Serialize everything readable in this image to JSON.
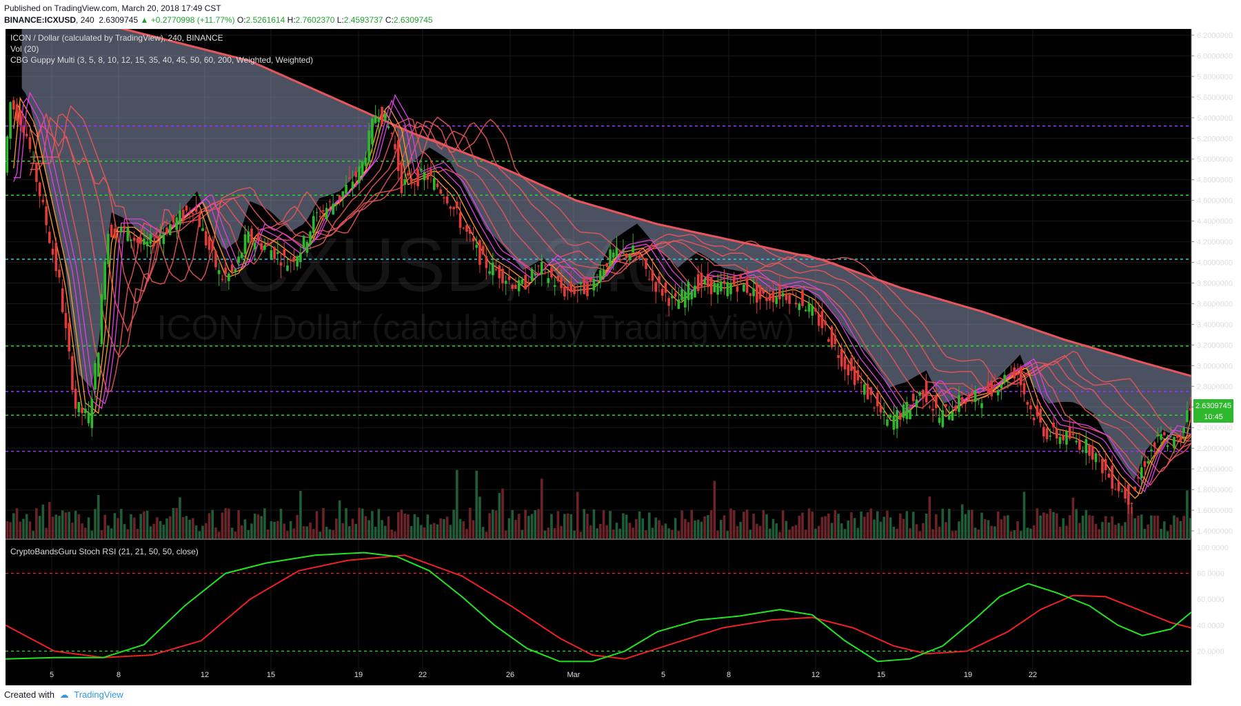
{
  "header": {
    "published": "Published on TradingView.com, March 20, 2018 17:49 CST",
    "symbol": "BINANCE:ICXUSD",
    "interval": "240",
    "last": "2.6309745",
    "change": "+0.2770998 (+11.77%)",
    "open_label": "O:",
    "open": "2.5261614",
    "high_label": "H:",
    "high": "2.7602370",
    "low_label": "L:",
    "low": "2.4593737",
    "close_label": "C:",
    "close": "2.6309745"
  },
  "legend": {
    "line1": "ICON / Dollar (calculated by TradingView), 240, BINANCE",
    "line2": "Vol (20)",
    "line3": "CBG Guppy Multi (3, 5, 8, 10, 12, 15, 35, 40, 45, 50, 60, 200, Weighted, Weighted)",
    "stoch": "CryptoBandsGuru Stoch RSI (21, 21, 50, 50, close)"
  },
  "watermark": {
    "line1": "ICXUSD, 240",
    "line2": "ICON / Dollar (calculated by TradingView)"
  },
  "price_tag": {
    "value": "2.6309745",
    "countdown": "10:45"
  },
  "footer": {
    "created": "Created with",
    "brand": "TradingView"
  },
  "colors": {
    "bg": "#000000",
    "up": "#2eb82e",
    "down": "#e03c3c",
    "cloud": "#8b93b0",
    "long_ema": "#e8555a",
    "long_ema_blue": "#2f53e6",
    "short_ema": "#ff9a2e",
    "short_ema_pink": "#e040e0",
    "k_line": "#22e522",
    "d_line": "#ee2222",
    "level_green": "#22dd22",
    "level_purple": "#9b30ff",
    "level_cyan": "#22d3e6"
  },
  "chart_data": {
    "type": "candlestick",
    "x_ticks": [
      "5",
      "8",
      "12",
      "15",
      "19",
      "22",
      "26",
      "Mar",
      "5",
      "8",
      "12",
      "15",
      "19",
      "22"
    ],
    "price_ticks": [
      "6.2000000",
      "6.0000000",
      "5.8000000",
      "5.6000000",
      "5.4000000",
      "5.2000000",
      "5.0000000",
      "4.8000000",
      "4.6000000",
      "4.4000000",
      "4.2000000",
      "4.0000000",
      "3.8000000",
      "3.6000000",
      "3.4000000",
      "3.2000000",
      "3.0000000",
      "2.8000000",
      "2.6000000",
      "2.4000000",
      "2.2000000",
      "2.0000000",
      "1.8000000",
      "1.6000000",
      "1.4000000"
    ],
    "price_range": [
      1.32,
      6.26
    ],
    "price_path": [
      [
        0,
        4.7
      ],
      [
        10,
        5.55
      ],
      [
        28,
        5.3
      ],
      [
        45,
        4.7
      ],
      [
        70,
        3.8
      ],
      [
        90,
        2.6
      ],
      [
        106,
        2.5
      ],
      [
        118,
        3.2
      ],
      [
        128,
        4.3
      ],
      [
        150,
        4.3
      ],
      [
        175,
        4.15
      ],
      [
        205,
        4.35
      ],
      [
        235,
        4.55
      ],
      [
        250,
        4.2
      ],
      [
        268,
        3.85
      ],
      [
        285,
        3.9
      ],
      [
        300,
        4.25
      ],
      [
        325,
        4.15
      ],
      [
        350,
        4.0
      ],
      [
        368,
        4.15
      ],
      [
        385,
        4.45
      ],
      [
        410,
        4.6
      ],
      [
        440,
        4.9
      ],
      [
        460,
        5.5
      ],
      [
        478,
        5.25
      ],
      [
        490,
        4.75
      ],
      [
        520,
        4.85
      ],
      [
        545,
        4.65
      ],
      [
        568,
        4.3
      ],
      [
        590,
        4.0
      ],
      [
        610,
        3.9
      ],
      [
        635,
        3.75
      ],
      [
        660,
        3.95
      ],
      [
        690,
        3.72
      ],
      [
        720,
        3.75
      ],
      [
        745,
        4.05
      ],
      [
        775,
        4.1
      ],
      [
        800,
        3.8
      ],
      [
        825,
        3.6
      ],
      [
        850,
        3.8
      ],
      [
        880,
        3.75
      ],
      [
        905,
        3.8
      ],
      [
        930,
        3.65
      ],
      [
        960,
        3.7
      ],
      [
        985,
        3.6
      ],
      [
        1010,
        3.35
      ],
      [
        1035,
        3.0
      ],
      [
        1060,
        2.75
      ],
      [
        1085,
        2.45
      ],
      [
        1105,
        2.55
      ],
      [
        1130,
        2.75
      ],
      [
        1150,
        2.5
      ],
      [
        1175,
        2.65
      ],
      [
        1200,
        2.7
      ],
      [
        1225,
        2.85
      ],
      [
        1245,
        2.95
      ],
      [
        1260,
        2.6
      ],
      [
        1280,
        2.35
      ],
      [
        1310,
        2.3
      ],
      [
        1335,
        2.2
      ],
      [
        1360,
        1.9
      ],
      [
        1385,
        1.7
      ],
      [
        1400,
        2.05
      ],
      [
        1420,
        2.3
      ],
      [
        1445,
        2.25
      ],
      [
        1455,
        2.63
      ]
    ],
    "horizontal_levels": [
      {
        "price": 5.32,
        "color": "purple"
      },
      {
        "price": 4.98,
        "color": "green"
      },
      {
        "price": 4.65,
        "color": "green"
      },
      {
        "price": 4.03,
        "color": "cyan"
      },
      {
        "price": 3.19,
        "color": "green"
      },
      {
        "price": 2.75,
        "color": "purple"
      },
      {
        "price": 2.52,
        "color": "green"
      },
      {
        "price": 2.17,
        "color": "purple"
      }
    ],
    "ema200_path": [
      [
        0,
        6.45
      ],
      [
        100,
        6.35
      ],
      [
        200,
        6.15
      ],
      [
        300,
        5.95
      ],
      [
        400,
        5.6
      ],
      [
        500,
        5.25
      ],
      [
        600,
        4.95
      ],
      [
        700,
        4.6
      ],
      [
        800,
        4.37
      ],
      [
        900,
        4.2
      ],
      [
        1000,
        4.03
      ],
      [
        1100,
        3.75
      ],
      [
        1200,
        3.52
      ],
      [
        1300,
        3.25
      ],
      [
        1400,
        3.02
      ],
      [
        1455,
        2.9
      ]
    ],
    "stoch_rsi": {
      "y_ticks": [
        "100.0000",
        "80.0000",
        "60.0000",
        "40.0000",
        "20.0000"
      ],
      "levels": [
        80,
        20
      ],
      "k": [
        [
          0,
          14
        ],
        [
          60,
          15
        ],
        [
          120,
          15
        ],
        [
          170,
          25
        ],
        [
          220,
          55
        ],
        [
          270,
          80
        ],
        [
          320,
          88
        ],
        [
          380,
          94
        ],
        [
          440,
          96
        ],
        [
          480,
          93
        ],
        [
          520,
          82
        ],
        [
          560,
          62
        ],
        [
          600,
          40
        ],
        [
          640,
          22
        ],
        [
          680,
          12
        ],
        [
          720,
          12
        ],
        [
          760,
          20
        ],
        [
          800,
          35
        ],
        [
          850,
          44
        ],
        [
          900,
          47
        ],
        [
          950,
          52
        ],
        [
          990,
          48
        ],
        [
          1030,
          28
        ],
        [
          1070,
          12
        ],
        [
          1110,
          14
        ],
        [
          1150,
          24
        ],
        [
          1190,
          45
        ],
        [
          1220,
          62
        ],
        [
          1255,
          72
        ],
        [
          1290,
          65
        ],
        [
          1330,
          55
        ],
        [
          1365,
          40
        ],
        [
          1395,
          32
        ],
        [
          1430,
          37
        ],
        [
          1455,
          50
        ]
      ],
      "d": [
        [
          0,
          40
        ],
        [
          60,
          20
        ],
        [
          120,
          15
        ],
        [
          180,
          17
        ],
        [
          240,
          28
        ],
        [
          300,
          60
        ],
        [
          360,
          82
        ],
        [
          420,
          90
        ],
        [
          490,
          94
        ],
        [
          560,
          78
        ],
        [
          620,
          55
        ],
        [
          680,
          30
        ],
        [
          720,
          17
        ],
        [
          760,
          14
        ],
        [
          820,
          26
        ],
        [
          880,
          38
        ],
        [
          940,
          44
        ],
        [
          990,
          46
        ],
        [
          1040,
          38
        ],
        [
          1090,
          24
        ],
        [
          1130,
          18
        ],
        [
          1180,
          20
        ],
        [
          1230,
          35
        ],
        [
          1270,
          52
        ],
        [
          1310,
          63
        ],
        [
          1350,
          62
        ],
        [
          1390,
          52
        ],
        [
          1430,
          42
        ],
        [
          1455,
          38
        ]
      ]
    }
  }
}
